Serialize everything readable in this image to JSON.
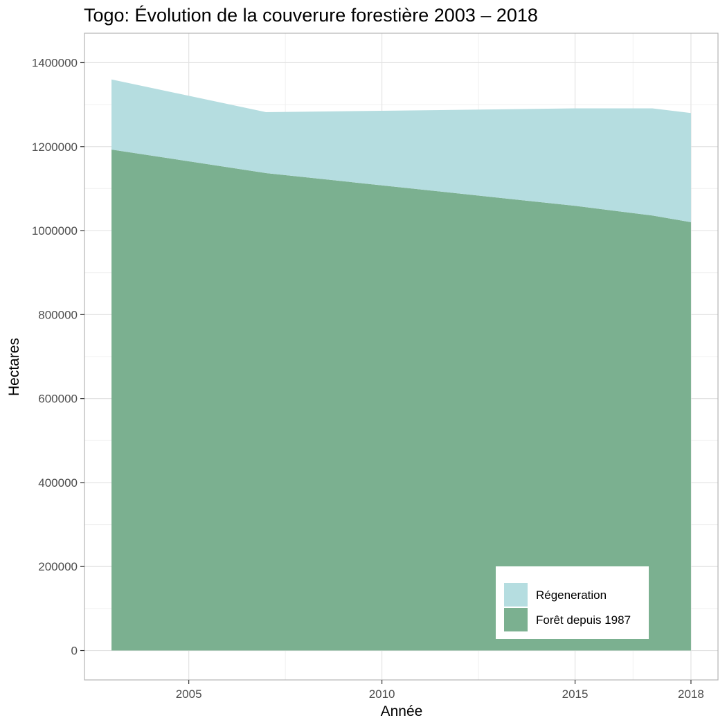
{
  "chart_data": {
    "type": "area",
    "stacked": true,
    "title": "Togo: Évolution de la couverure forestière 2003 – 2018",
    "xlabel": "Année",
    "ylabel": "Hectares",
    "x": [
      2003,
      2007,
      2015,
      2017,
      2018
    ],
    "xticks": [
      2005,
      2010,
      2015,
      2018
    ],
    "yticks": [
      0,
      200000,
      400000,
      600000,
      800000,
      1000000,
      1200000,
      1400000
    ],
    "xlim": [
      2002.3,
      2018.7
    ],
    "ylim": [
      -70000,
      1470000
    ],
    "grid": true,
    "legend_position": "bottom-right",
    "series": [
      {
        "name": "Forêt depuis 1987",
        "color": "#7bb090",
        "values": [
          1193000,
          1137000,
          1059000,
          1036000,
          1020000
        ]
      },
      {
        "name": "Régeneration",
        "color": "#b5dde0",
        "values": [
          167000,
          145000,
          232000,
          255000,
          260000
        ]
      }
    ],
    "legend_order": [
      "Régeneration",
      "Forêt depuis 1987"
    ]
  }
}
